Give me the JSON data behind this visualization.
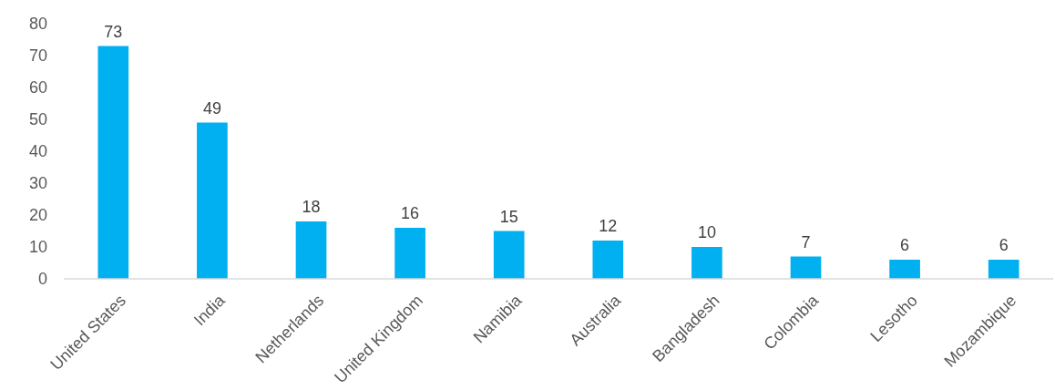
{
  "chart_data": {
    "type": "bar",
    "categories": [
      "United States",
      "India",
      "Netherlands",
      "United Kingdom",
      "Namibia",
      "Australia",
      "Bangladesh",
      "Colombia",
      "Lesotho",
      "Mozambique"
    ],
    "values": [
      73,
      49,
      18,
      16,
      15,
      12,
      10,
      7,
      6,
      6
    ],
    "color": "#00b0f0",
    "ylim": [
      0,
      80
    ],
    "yticks": [
      0,
      10,
      20,
      30,
      40,
      50,
      60,
      70,
      80
    ],
    "grid": false,
    "data_labels": true
  }
}
